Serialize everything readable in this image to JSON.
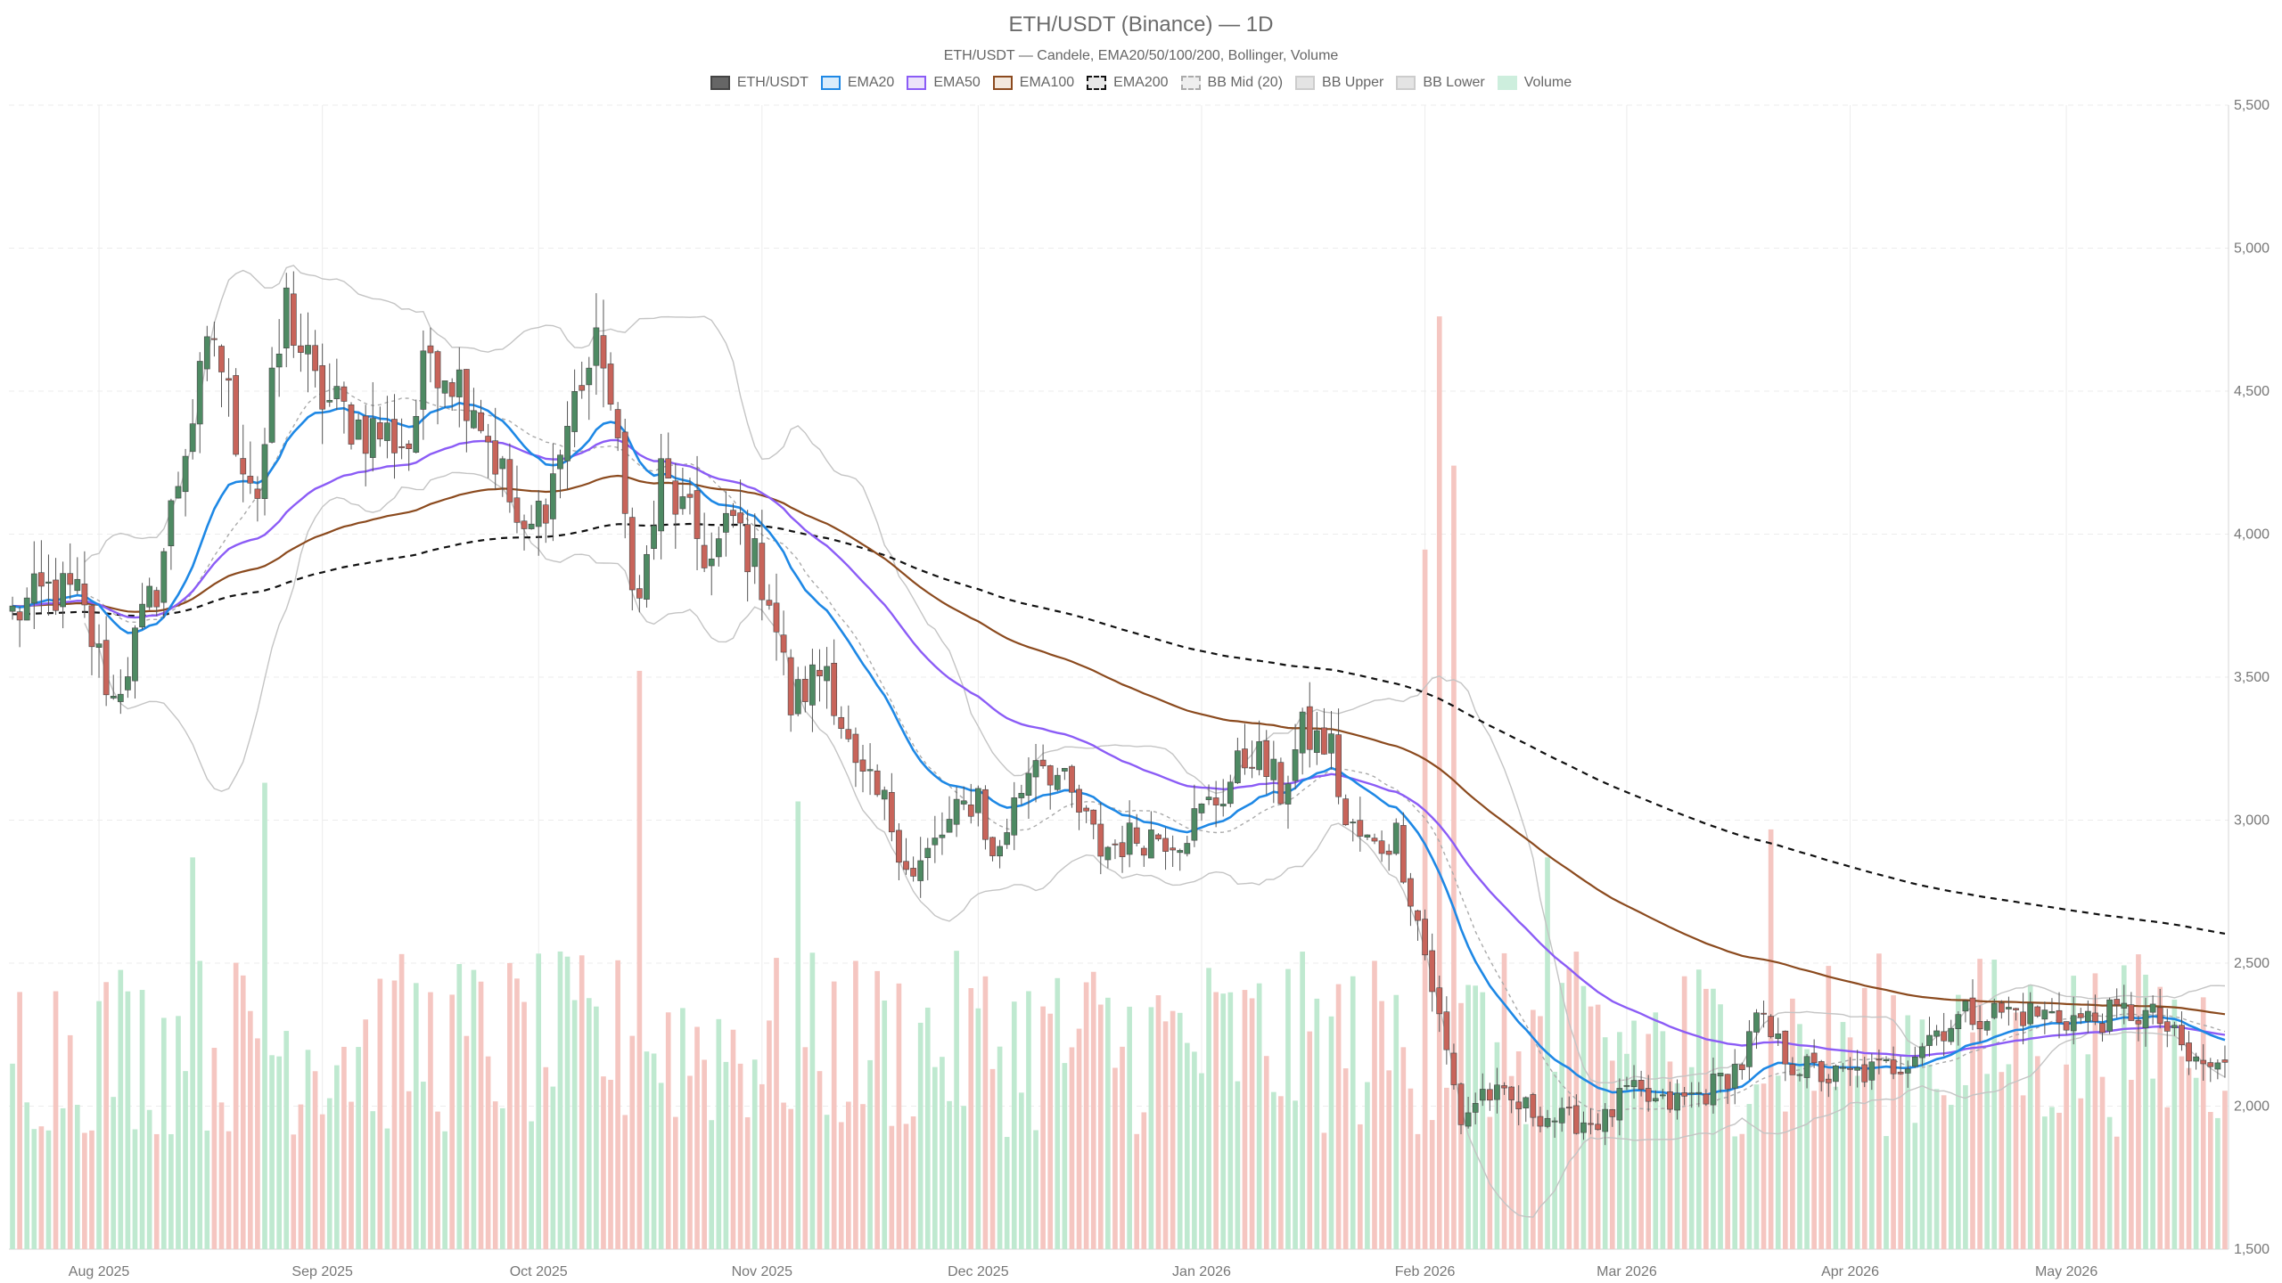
{
  "chart_data": {
    "type": "candlestick",
    "title": "ETH/USDT (Binance) — 1D",
    "subtitle": "ETH/USDT — Candele, EMA20/50/100/200, Bollinger, Volume",
    "legend": [
      {
        "label": "ETH/USDT",
        "fill": "#666666",
        "stroke": "#444444",
        "style": "solid"
      },
      {
        "label": "EMA20",
        "fill": "#d9ecfb",
        "stroke": "#1e88e5",
        "style": "solid"
      },
      {
        "label": "EMA50",
        "fill": "#ece3fa",
        "stroke": "#8b5cf6",
        "style": "solid"
      },
      {
        "label": "EMA100",
        "fill": "#f3e8dd",
        "stroke": "#8b4a1e",
        "style": "solid"
      },
      {
        "label": "EMA200",
        "fill": "#e8e8e8",
        "stroke": "#111111",
        "style": "dashed"
      },
      {
        "label": "BB Mid (20)",
        "fill": "#eeeeee",
        "stroke": "#aaaaaa",
        "style": "dashed"
      },
      {
        "label": "BB Upper",
        "fill": "#e4e4e4",
        "stroke": "#cccccc",
        "style": "solid"
      },
      {
        "label": "BB Lower",
        "fill": "#e4e4e4",
        "stroke": "#cccccc",
        "style": "solid"
      },
      {
        "label": "Volume",
        "fill": "#cdeedd",
        "stroke": "#cdeedd",
        "style": "solid"
      }
    ],
    "colors": {
      "up": "#4e8a63",
      "down": "#c8645a",
      "vol_up": "#bfe9d0",
      "vol_down": "#f5c6c1",
      "ema20": "#1e88e5",
      "ema50": "#8b5cf6",
      "ema100": "#8b4a1e",
      "ema200": "#111111",
      "bb": "#c4c4c4",
      "bb_mid": "#aaaaaa",
      "grid": "#ececec"
    },
    "y_axis": {
      "min": 1500,
      "max": 5500,
      "ticks": [
        1500,
        2000,
        2500,
        3000,
        3500,
        4000,
        4500,
        5000,
        5500
      ],
      "tick_labels": [
        "1,500",
        "2,000",
        "2,500",
        "3,000",
        "3,500",
        "4,000",
        "4,500",
        "5,000",
        "5,500"
      ],
      "position": "right"
    },
    "x_axis": {
      "start": "2025-07-20",
      "end": "2026-05-23",
      "month_labels": [
        {
          "date": "2025-08-01",
          "label": "Aug 2025"
        },
        {
          "date": "2025-09-01",
          "label": "Sep 2025"
        },
        {
          "date": "2025-10-01",
          "label": "Oct 2025"
        },
        {
          "date": "2025-11-01",
          "label": "Nov 2025"
        },
        {
          "date": "2025-12-01",
          "label": "Dec 2025"
        },
        {
          "date": "2026-01-01",
          "label": "Jan 2026"
        },
        {
          "date": "2026-02-01",
          "label": "Feb 2026"
        },
        {
          "date": "2026-03-01",
          "label": "Mar 2026"
        },
        {
          "date": "2026-04-01",
          "label": "Apr 2026"
        },
        {
          "date": "2026-05-01",
          "label": "May 2026"
        }
      ]
    },
    "close_anchors": [
      [
        "2025-07-20",
        3720
      ],
      [
        "2025-07-25",
        3800
      ],
      [
        "2025-07-29",
        3780
      ],
      [
        "2025-08-03",
        3420
      ],
      [
        "2025-08-09",
        3820
      ],
      [
        "2025-08-13",
        4320
      ],
      [
        "2025-08-17",
        4700
      ],
      [
        "2025-08-20",
        4350
      ],
      [
        "2025-08-23",
        4150
      ],
      [
        "2025-08-27",
        4800
      ],
      [
        "2025-08-31",
        4500
      ],
      [
        "2025-09-06",
        4380
      ],
      [
        "2025-09-13",
        4320
      ],
      [
        "2025-09-16",
        4650
      ],
      [
        "2025-09-22",
        4480
      ],
      [
        "2025-09-26",
        4200
      ],
      [
        "2025-09-29",
        3950
      ],
      [
        "2025-10-03",
        4200
      ],
      [
        "2025-10-07",
        4550
      ],
      [
        "2025-10-10",
        4650
      ],
      [
        "2025-10-13",
        4050
      ],
      [
        "2025-10-15",
        3750
      ],
      [
        "2025-10-18",
        4200
      ],
      [
        "2025-10-25",
        3900
      ],
      [
        "2025-10-28",
        4050
      ],
      [
        "2025-11-02",
        3800
      ],
      [
        "2025-11-05",
        3400
      ],
      [
        "2025-11-10",
        3550
      ],
      [
        "2025-11-14",
        3150
      ],
      [
        "2025-11-18",
        3050
      ],
      [
        "2025-11-22",
        2800
      ],
      [
        "2025-11-26",
        2950
      ],
      [
        "2025-12-01",
        3100
      ],
      [
        "2025-12-03",
        2850
      ],
      [
        "2025-12-09",
        3250
      ],
      [
        "2025-12-12",
        3150
      ],
      [
        "2025-12-18",
        2900
      ],
      [
        "2025-12-24",
        2950
      ],
      [
        "2025-12-29",
        2950
      ],
      [
        "2026-01-04",
        3100
      ],
      [
        "2026-01-08",
        3250
      ],
      [
        "2026-01-12",
        3100
      ],
      [
        "2026-01-15",
        3300
      ],
      [
        "2026-01-19",
        3250
      ],
      [
        "2026-01-21",
        2980
      ],
      [
        "2026-01-25",
        2900
      ],
      [
        "2026-01-28",
        2950
      ],
      [
        "2026-01-31",
        2650
      ],
      [
        "2026-02-03",
        2300
      ],
      [
        "2026-02-06",
        1950
      ],
      [
        "2026-02-09",
        2050
      ],
      [
        "2026-02-14",
        2000
      ],
      [
        "2026-02-20",
        1950
      ],
      [
        "2026-02-26",
        1950
      ],
      [
        "2026-03-01",
        2050
      ],
      [
        "2026-03-06",
        2000
      ],
      [
        "2026-03-12",
        2050
      ],
      [
        "2026-03-17",
        2150
      ],
      [
        "2026-03-19",
        2300
      ],
      [
        "2026-03-24",
        2150
      ],
      [
        "2026-03-29",
        2100
      ],
      [
        "2026-04-04",
        2120
      ],
      [
        "2026-04-08",
        2150
      ],
      [
        "2026-04-12",
        2250
      ],
      [
        "2026-04-17",
        2320
      ],
      [
        "2026-04-23",
        2330
      ],
      [
        "2026-04-28",
        2320
      ],
      [
        "2026-05-04",
        2300
      ],
      [
        "2026-05-10",
        2330
      ],
      [
        "2026-05-14",
        2300
      ],
      [
        "2026-05-18",
        2160
      ],
      [
        "2026-05-22",
        2130
      ]
    ],
    "volume_peaks": [
      [
        "2025-08-14",
        0.42
      ],
      [
        "2025-08-24",
        0.5
      ],
      [
        "2025-10-15",
        0.62
      ],
      [
        "2025-11-06",
        0.48
      ],
      [
        "2026-02-01",
        0.75
      ],
      [
        "2026-02-03",
        1.0
      ],
      [
        "2026-02-05",
        0.84
      ],
      [
        "2026-02-18",
        0.42
      ],
      [
        "2026-03-21",
        0.45
      ]
    ]
  }
}
